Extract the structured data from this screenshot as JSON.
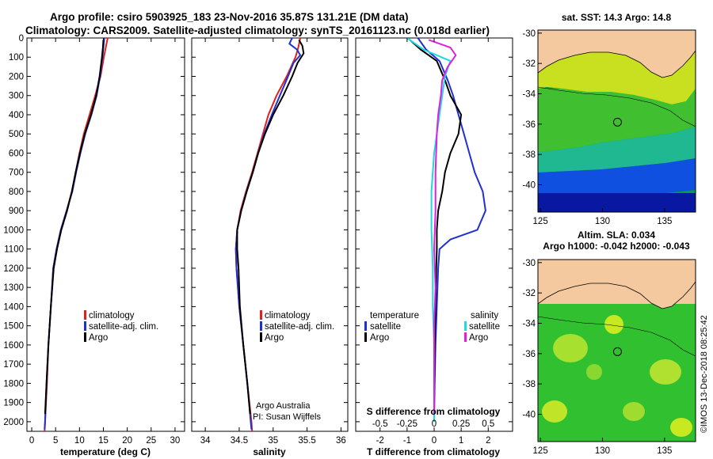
{
  "title_line1": "Argo profile: csiro 5903925_183 23-Nov-2016 35.87S 131.21E (DM data)",
  "title_line2": "Climatology: CARS2009. Satellite-adjusted climatology: synTS_20161123.nc (0.018d earlier)",
  "colors": {
    "climatology": "#e02020",
    "satellite": "#2030d0",
    "argo": "#000000",
    "sat_salinity": "#20d8e0",
    "argo_salinity": "#e020e0",
    "land": "#f5c9a0"
  },
  "chart_data": [
    {
      "type": "line",
      "name": "temperature-panel",
      "xlabel": "temperature (deg C)",
      "xlim": [
        -1,
        32
      ],
      "ylim": [
        2050,
        0
      ],
      "x_ticks": [
        0,
        5,
        10,
        15,
        20,
        25,
        30
      ],
      "y_ticks": [
        0,
        100,
        200,
        300,
        400,
        500,
        600,
        700,
        800,
        900,
        1000,
        1100,
        1200,
        1300,
        1400,
        1500,
        1600,
        1700,
        1800,
        1900,
        2000
      ],
      "legend": [
        "climatology",
        "satellite-adj. clim.",
        "Argo"
      ],
      "series": [
        {
          "name": "climatology",
          "color": "#e02020",
          "points": [
            [
              15.9,
              0
            ],
            [
              15.5,
              50
            ],
            [
              15.1,
              100
            ],
            [
              14.4,
              200
            ],
            [
              13.3,
              300
            ],
            [
              12.1,
              400
            ],
            [
              10.9,
              500
            ],
            [
              10.0,
              600
            ],
            [
              9.2,
              700
            ],
            [
              8.4,
              800
            ],
            [
              7.3,
              900
            ],
            [
              6.1,
              1000
            ],
            [
              5.2,
              1100
            ],
            [
              4.5,
              1200
            ],
            [
              4.0,
              1400
            ],
            [
              3.5,
              1600
            ],
            [
              3.2,
              1800
            ],
            [
              2.8,
              2000
            ],
            [
              2.7,
              2050
            ]
          ]
        },
        {
          "name": "satellite-adj. clim.",
          "color": "#2030d0",
          "points": [
            [
              15.2,
              0
            ],
            [
              15.0,
              50
            ],
            [
              14.8,
              100
            ],
            [
              14.3,
              200
            ],
            [
              13.6,
              300
            ],
            [
              12.5,
              400
            ],
            [
              11.2,
              500
            ],
            [
              10.2,
              600
            ],
            [
              9.3,
              700
            ],
            [
              8.5,
              800
            ],
            [
              7.3,
              900
            ],
            [
              6.1,
              1000
            ],
            [
              5.2,
              1100
            ],
            [
              4.5,
              1200
            ],
            [
              4.0,
              1400
            ],
            [
              3.5,
              1600
            ],
            [
              3.1,
              1800
            ],
            [
              2.8,
              2000
            ],
            [
              2.7,
              2040
            ]
          ]
        },
        {
          "name": "Argo",
          "color": "#000000",
          "points": [
            [
              15.0,
              10
            ],
            [
              14.9,
              50
            ],
            [
              14.7,
              100
            ],
            [
              14.2,
              200
            ],
            [
              13.5,
              300
            ],
            [
              12.4,
              400
            ],
            [
              11.1,
              500
            ],
            [
              10.1,
              600
            ],
            [
              9.2,
              700
            ],
            [
              8.4,
              800
            ],
            [
              7.4,
              900
            ],
            [
              6.2,
              1000
            ],
            [
              5.3,
              1100
            ],
            [
              4.6,
              1200
            ],
            [
              4.0,
              1400
            ],
            [
              3.5,
              1600
            ],
            [
              3.1,
              1800
            ],
            [
              2.8,
              1960
            ]
          ]
        }
      ]
    },
    {
      "type": "line",
      "name": "salinity-panel",
      "xlabel": "salinity",
      "xlim": [
        33.8,
        36.1
      ],
      "ylim": [
        2050,
        0
      ],
      "x_ticks": [
        34,
        34.5,
        35,
        35.5,
        36
      ],
      "x_tick_labels": [
        "34",
        "34.5",
        "35",
        "35.5",
        "36"
      ],
      "legend": [
        "climatology",
        "satellite-adj. clim.",
        "Argo"
      ],
      "annotation": [
        "Argo Australia",
        "PI: Susan Wijffels"
      ],
      "series": [
        {
          "name": "climatology",
          "color": "#e02020",
          "points": [
            [
              35.4,
              0
            ],
            [
              35.37,
              50
            ],
            [
              35.33,
              100
            ],
            [
              35.2,
              200
            ],
            [
              35.05,
              300
            ],
            [
              34.93,
              400
            ],
            [
              34.85,
              500
            ],
            [
              34.77,
              600
            ],
            [
              34.69,
              700
            ],
            [
              34.6,
              800
            ],
            [
              34.52,
              900
            ],
            [
              34.47,
              1000
            ],
            [
              34.45,
              1100
            ],
            [
              34.46,
              1200
            ],
            [
              34.5,
              1400
            ],
            [
              34.56,
              1600
            ],
            [
              34.62,
              1800
            ],
            [
              34.68,
              2000
            ],
            [
              34.69,
              2050
            ]
          ]
        },
        {
          "name": "satellite-adj. clim.",
          "color": "#2030d0",
          "points": [
            [
              35.28,
              0
            ],
            [
              35.24,
              30
            ],
            [
              35.35,
              60
            ],
            [
              35.4,
              90
            ],
            [
              35.3,
              130
            ],
            [
              35.22,
              200
            ],
            [
              35.1,
              300
            ],
            [
              34.98,
              400
            ],
            [
              34.87,
              500
            ],
            [
              34.78,
              600
            ],
            [
              34.7,
              700
            ],
            [
              34.61,
              800
            ],
            [
              34.53,
              900
            ],
            [
              34.47,
              1000
            ],
            [
              34.45,
              1100
            ],
            [
              34.46,
              1200
            ],
            [
              34.5,
              1400
            ],
            [
              34.56,
              1600
            ],
            [
              34.62,
              1800
            ],
            [
              34.67,
              2000
            ],
            [
              34.68,
              2040
            ]
          ]
        },
        {
          "name": "Argo",
          "color": "#000000",
          "points": [
            [
              35.38,
              10
            ],
            [
              35.43,
              40
            ],
            [
              35.45,
              80
            ],
            [
              35.36,
              130
            ],
            [
              35.28,
              200
            ],
            [
              35.15,
              300
            ],
            [
              35.0,
              400
            ],
            [
              34.88,
              500
            ],
            [
              34.78,
              600
            ],
            [
              34.7,
              700
            ],
            [
              34.61,
              800
            ],
            [
              34.53,
              900
            ],
            [
              34.47,
              1000
            ],
            [
              34.47,
              1100
            ],
            [
              34.49,
              1200
            ],
            [
              34.51,
              1400
            ],
            [
              34.56,
              1600
            ],
            [
              34.62,
              1800
            ],
            [
              34.66,
              1960
            ]
          ]
        }
      ]
    },
    {
      "type": "line",
      "name": "difference-panel",
      "xlabel": "T difference from climatology",
      "xlabel_top": "S difference from climatology",
      "xlim": [
        -2.9,
        2.9
      ],
      "ylim": [
        2050,
        0
      ],
      "x_ticks": [
        -2,
        -1,
        0,
        1,
        2
      ],
      "x_tick_labels": [
        "-2",
        "-1",
        "0",
        "1",
        "2"
      ],
      "s_ticks": [
        -0.5,
        -0.25,
        0,
        0.25,
        0.5
      ],
      "s_tick_labels": [
        "-0.5",
        "-0.25",
        "0",
        "0.25",
        "0.5"
      ],
      "legend_left_title": "temperature",
      "legend_right_title": "salinity",
      "legend_left": [
        "satellite",
        "Argo"
      ],
      "legend_right": [
        "satellite",
        "Argo"
      ],
      "series": [
        {
          "name": "satellite T",
          "color": "#2030d0",
          "points": [
            [
              -0.6,
              0
            ],
            [
              -0.3,
              60
            ],
            [
              0.2,
              120
            ],
            [
              0.5,
              220
            ],
            [
              0.7,
              300
            ],
            [
              0.9,
              400
            ],
            [
              1.1,
              500
            ],
            [
              1.3,
              600
            ],
            [
              1.5,
              700
            ],
            [
              1.8,
              800
            ],
            [
              1.9,
              900
            ],
            [
              1.6,
              1000
            ],
            [
              0.6,
              1050
            ],
            [
              0.2,
              1100
            ],
            [
              0.15,
              1200
            ],
            [
              0.1,
              1400
            ],
            [
              0.05,
              1600
            ],
            [
              0.02,
              1800
            ],
            [
              0.0,
              2000
            ]
          ]
        },
        {
          "name": "Argo T",
          "color": "#000000",
          "points": [
            [
              -0.9,
              10
            ],
            [
              -0.5,
              60
            ],
            [
              0.1,
              120
            ],
            [
              0.4,
              220
            ],
            [
              0.6,
              300
            ],
            [
              1.0,
              400
            ],
            [
              0.9,
              500
            ],
            [
              0.6,
              600
            ],
            [
              0.4,
              700
            ],
            [
              0.3,
              800
            ],
            [
              0.15,
              900
            ],
            [
              0.1,
              1000
            ],
            [
              0.1,
              1100
            ],
            [
              0.08,
              1200
            ],
            [
              0.05,
              1400
            ],
            [
              0.02,
              1600
            ],
            [
              0.0,
              1800
            ],
            [
              0.0,
              1960
            ]
          ]
        },
        {
          "name": "satellite S",
          "color": "#20d8e0",
          "points": [
            [
              -1.0,
              0
            ],
            [
              -0.4,
              60
            ],
            [
              0.6,
              120
            ],
            [
              0.4,
              200
            ],
            [
              0.3,
              300
            ],
            [
              0.2,
              400
            ],
            [
              0.0,
              600
            ],
            [
              -0.1,
              800
            ],
            [
              -0.1,
              1000
            ],
            [
              -0.05,
              1200
            ],
            [
              -0.05,
              1400
            ],
            [
              0.0,
              1600
            ],
            [
              0.0,
              1800
            ],
            [
              0.0,
              2000
            ]
          ]
        },
        {
          "name": "Argo S",
          "color": "#e020e0",
          "points": [
            [
              -0.2,
              10
            ],
            [
              0.6,
              50
            ],
            [
              0.8,
              90
            ],
            [
              0.5,
              150
            ],
            [
              0.3,
              220
            ],
            [
              0.25,
              300
            ],
            [
              0.15,
              400
            ],
            [
              0.1,
              500
            ],
            [
              0.05,
              700
            ],
            [
              0.05,
              900
            ],
            [
              0.0,
              1100
            ],
            [
              0.05,
              1300
            ],
            [
              0.0,
              1500
            ],
            [
              0.0,
              1700
            ],
            [
              0.0,
              1960
            ]
          ]
        }
      ]
    }
  ],
  "maps": [
    {
      "name": "sst-map",
      "title": "sat. SST: 14.3 Argo: 14.8",
      "x_ticks": [
        125,
        130,
        135
      ],
      "y_ticks": [
        -30,
        -32,
        -34,
        -36,
        -38,
        -40
      ],
      "y_tick_labels": [
        "-30",
        "-32",
        "-34",
        "-36",
        "-38",
        "-40"
      ],
      "lon_range": [
        124.8,
        137.5
      ],
      "lat_range": [
        -41.8,
        -29.8
      ]
    },
    {
      "name": "sla-map",
      "title_line1": "Altim. SLA: 0.034",
      "title_line2": "Argo h1000: -0.042 h2000: -0.043",
      "x_ticks": [
        125,
        130,
        135
      ],
      "y_ticks": [
        -30,
        -32,
        -34,
        -36,
        -38,
        -40
      ],
      "y_tick_labels": [
        "-30",
        "-32",
        "-34",
        "-36",
        "-38",
        "-40"
      ],
      "lon_range": [
        124.8,
        137.5
      ],
      "lat_range": [
        -41.8,
        -29.8
      ]
    }
  ],
  "float_position": {
    "lon": 131.21,
    "lat": -35.87
  },
  "credit": "©IMOS 13-Dec-2018 08:25:42"
}
